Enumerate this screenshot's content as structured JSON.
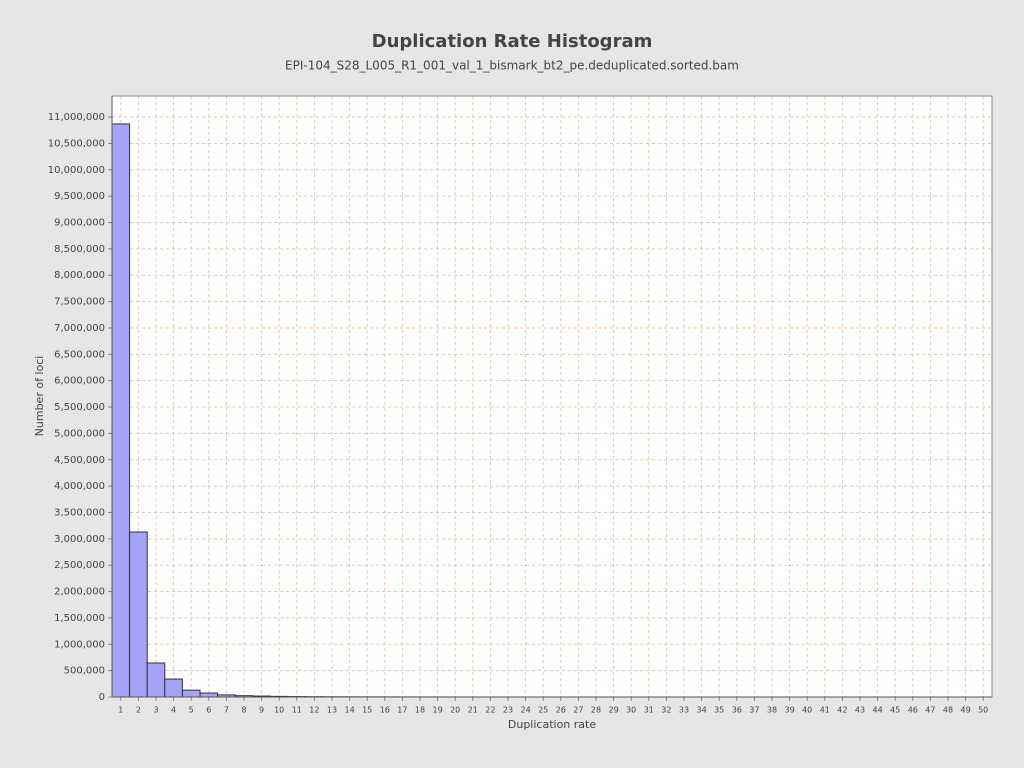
{
  "chart_data": {
    "type": "histogram",
    "title": "Duplication Rate Histogram",
    "subtitle": "EPI-104_S28_L005_R1_001_val_1_bismark_bt2_pe.deduplicated.sorted.bam",
    "x_label": "Duplication rate",
    "y_label": "Number of loci",
    "color": "#a3a3f7",
    "bins": [
      0.5,
      1.5,
      2.5,
      3.5,
      4.5,
      5.5,
      6.5,
      7.5,
      8.5,
      9.5,
      10.5,
      11.5,
      12.5,
      13.5,
      14.5,
      15.5,
      16.5,
      17.5,
      18.5,
      19.5,
      20.5,
      21.5,
      22.5,
      23.5,
      24.5,
      25.5,
      26.5,
      27.5,
      28.5,
      29.5,
      30.5,
      31.5,
      32.5,
      33.5,
      34.5,
      35.5,
      36.5,
      37.5,
      38.5,
      39.5,
      40.5,
      41.5,
      42.5,
      43.5,
      44.5,
      45.5,
      46.5,
      47.5,
      48.5,
      49.5,
      50.5
    ],
    "values": [
      10870000,
      3130000,
      645000,
      340000,
      130000,
      75000,
      40000,
      25000,
      18000,
      12000,
      8000,
      6000,
      4500,
      3500,
      2800,
      2200,
      1800,
      1500,
      1200,
      1000,
      850,
      700,
      600,
      500,
      430,
      370,
      320,
      280,
      240,
      210,
      180,
      160,
      140,
      120,
      110,
      100,
      90,
      80,
      70,
      60,
      55,
      50,
      45,
      40,
      35,
      30,
      28,
      25,
      22,
      20
    ],
    "xlim": [
      0.5,
      50.5
    ],
    "xticks": [
      1,
      2,
      3,
      4,
      5,
      6,
      7,
      8,
      9,
      10,
      11,
      12,
      13,
      14,
      15,
      16,
      17,
      18,
      19,
      20,
      21,
      22,
      23,
      24,
      25,
      26,
      27,
      28,
      29,
      30,
      31,
      32,
      33,
      34,
      35,
      36,
      37,
      38,
      39,
      40,
      41,
      42,
      43,
      44,
      45,
      46,
      47,
      48,
      49,
      50
    ],
    "ylim": [
      0,
      11400000
    ],
    "yticks": [
      0,
      {
        "value": 500000,
        "label": "500,000"
      },
      {
        "value": 1000000,
        "label": "1,000,000"
      },
      {
        "value": 1500000,
        "label": "1,500,000"
      },
      {
        "value": 2000000,
        "label": "2,000,000"
      },
      {
        "value": 2500000,
        "label": "2,500,000"
      },
      {
        "value": 3000000,
        "label": "3,000,000"
      },
      {
        "value": 3500000,
        "label": "3,500,000"
      },
      {
        "value": 4000000,
        "label": "4,000,000"
      },
      {
        "value": 4500000,
        "label": "4,500,000"
      },
      {
        "value": 5000000,
        "label": "5,000,000"
      },
      {
        "value": 5500000,
        "label": "5,500,000"
      },
      {
        "value": 6000000,
        "label": "6,000,000"
      },
      {
        "value": 6500000,
        "label": "6,500,000"
      },
      {
        "value": 7000000,
        "label": "7,000,000"
      },
      {
        "value": 7500000,
        "label": "7,500,000"
      },
      {
        "value": 8000000,
        "label": "8,000,000"
      },
      {
        "value": 8500000,
        "label": "8,500,000"
      },
      {
        "value": 9000000,
        "label": "9,000,000"
      },
      {
        "value": 9500000,
        "label": "9,500,000"
      },
      {
        "value": 10000000,
        "label": "10,000,000"
      },
      {
        "value": 10500000,
        "label": "10,500,000"
      },
      {
        "value": 11000000,
        "label": "11,000,000"
      }
    ],
    "grid": true
  }
}
